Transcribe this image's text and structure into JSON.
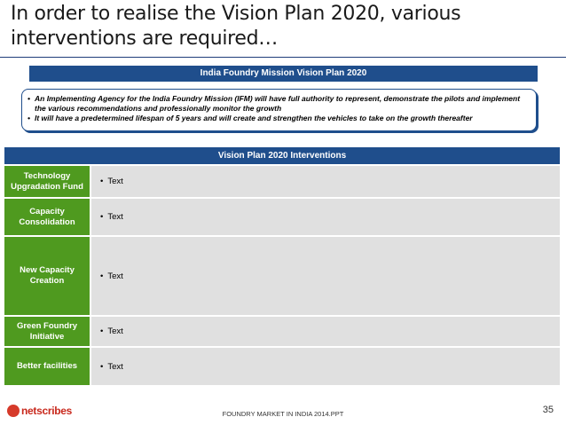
{
  "slide": {
    "title": "In order to realise the Vision Plan 2020, various interventions are required…"
  },
  "mission": {
    "header": "India Foundry Mission Vision Plan 2020",
    "bullets": [
      "An Implementing Agency for the India Foundry Mission (IFM) will have full authority to represent, demonstrate the pilots and implement the various recommendations and professionally monitor the growth",
      "It will have a predetermined lifespan of 5 years and will create and strengthen the vehicles to take on the growth thereafter"
    ]
  },
  "interventions": {
    "header": "Vision Plan 2020 Interventions",
    "rows": [
      {
        "label": "Technology Upgradation Fund",
        "text": "Text"
      },
      {
        "label": "Capacity Consolidation",
        "text": "Text"
      },
      {
        "label": "New Capacity Creation",
        "text": "Text"
      },
      {
        "label": "Green Foundry Initiative",
        "text": "Text"
      },
      {
        "label": "Better facilities",
        "text": "Text"
      }
    ]
  },
  "footer": {
    "logo": "netscribes",
    "center": "FOUNDRY MARKET IN INDIA 2014.PPT",
    "page": "35"
  },
  "colors": {
    "header_blue": "#1f4e8c",
    "label_green": "#4f9a1f",
    "cell_gray": "#e0e0e0",
    "logo_red": "#d63a2a"
  }
}
